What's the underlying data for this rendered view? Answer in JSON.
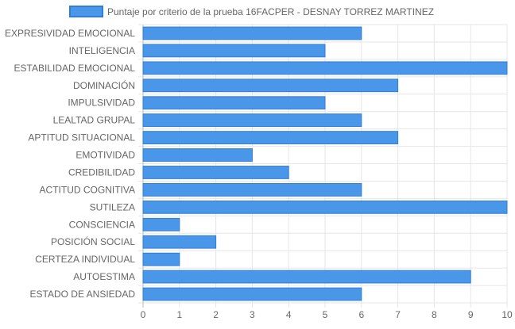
{
  "chart_data": {
    "type": "bar",
    "orientation": "horizontal",
    "categories": [
      "EXPRESIVIDAD EMOCIONAL",
      "INTELIGENCIA",
      "ESTABILIDAD EMOCIONAL",
      "DOMINACIÓN",
      "IMPULSIVIDAD",
      "LEALTAD GRUPAL",
      "APTITUD SITUACIONAL",
      "EMOTIVIDAD",
      "CREDIBILIDAD",
      "ACTITUD COGNITIVA",
      "SUTILEZA",
      "CONSCIENCIA",
      "POSICIÓN SOCIAL",
      "CERTEZA INDIVIDUAL",
      "AUTOESTIMA",
      "ESTADO DE ANSIEDAD"
    ],
    "series": [
      {
        "name": "Puntaje por criterio de la prueba 16FACPER - DESNAY TORREZ MARTINEZ",
        "values": [
          6,
          5,
          10,
          7,
          5,
          6,
          7,
          3,
          4,
          6,
          10,
          1,
          2,
          1,
          9,
          6
        ],
        "color": "#4a96e8",
        "border_color": "#2f7fd9"
      }
    ],
    "xlim": [
      0,
      10
    ],
    "xticks": [
      0,
      1,
      2,
      3,
      4,
      5,
      6,
      7,
      8,
      9,
      10
    ],
    "grid": true,
    "legend_position": "top",
    "title": "",
    "xlabel": "",
    "ylabel": ""
  }
}
